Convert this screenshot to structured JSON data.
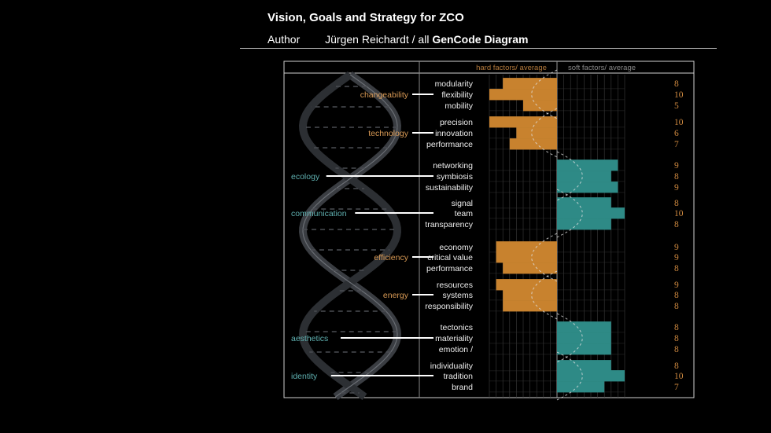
{
  "header": {
    "title": "Vision, Goals and Strategy for ZCO",
    "author_label": "Author",
    "author_name": "Jürgen Reichardt / all",
    "diagram_name": "GenCode Diagram"
  },
  "columns": {
    "hard": "hard factors/ average",
    "soft": "soft factors/ average"
  },
  "colors": {
    "hard": "#c8822e",
    "soft": "#2e8a86",
    "hard_text": "#d99a55",
    "soft_text": "#5fb0b0",
    "score_text": "#d08a40"
  },
  "groups": [
    {
      "name": "changeability",
      "side": "hard",
      "factors": [
        {
          "label": "modularity",
          "score": 8
        },
        {
          "label": "flexibility",
          "score": 10
        },
        {
          "label": "mobility",
          "score": 5
        }
      ]
    },
    {
      "name": "technology",
      "side": "hard",
      "factors": [
        {
          "label": "precision",
          "score": 10
        },
        {
          "label": "innovation",
          "score": 6
        },
        {
          "label": "performance",
          "score": 7
        }
      ]
    },
    {
      "name": "ecology",
      "side": "soft",
      "factors": [
        {
          "label": "networking",
          "score": 9
        },
        {
          "label": "symbiosis",
          "score": 8
        },
        {
          "label": "sustainability",
          "score": 9
        }
      ]
    },
    {
      "name": "communication",
      "side": "soft",
      "factors": [
        {
          "label": "signal",
          "score": 8
        },
        {
          "label": "team",
          "score": 10
        },
        {
          "label": "transparency",
          "score": 8
        }
      ]
    },
    {
      "name": "efficiency",
      "side": "hard",
      "factors": [
        {
          "label": "economy",
          "score": 9
        },
        {
          "label": "critical value",
          "score": 9
        },
        {
          "label": "performance",
          "score": 8
        }
      ]
    },
    {
      "name": "energy",
      "side": "hard",
      "factors": [
        {
          "label": "resources",
          "score": 9
        },
        {
          "label": "systems",
          "score": 8
        },
        {
          "label": "responsibility",
          "score": 8
        }
      ]
    },
    {
      "name": "aesthetics",
      "side": "soft",
      "factors": [
        {
          "label": "tectonics",
          "score": 8
        },
        {
          "label": "materiality",
          "score": 8
        },
        {
          "label": "emotion /",
          "score": 8
        }
      ]
    },
    {
      "name": "identity",
      "side": "soft",
      "factors": [
        {
          "label": "individuality",
          "score": 8
        },
        {
          "label": "tradition",
          "score": 10
        },
        {
          "label": "brand",
          "score": 7
        }
      ]
    }
  ]
}
